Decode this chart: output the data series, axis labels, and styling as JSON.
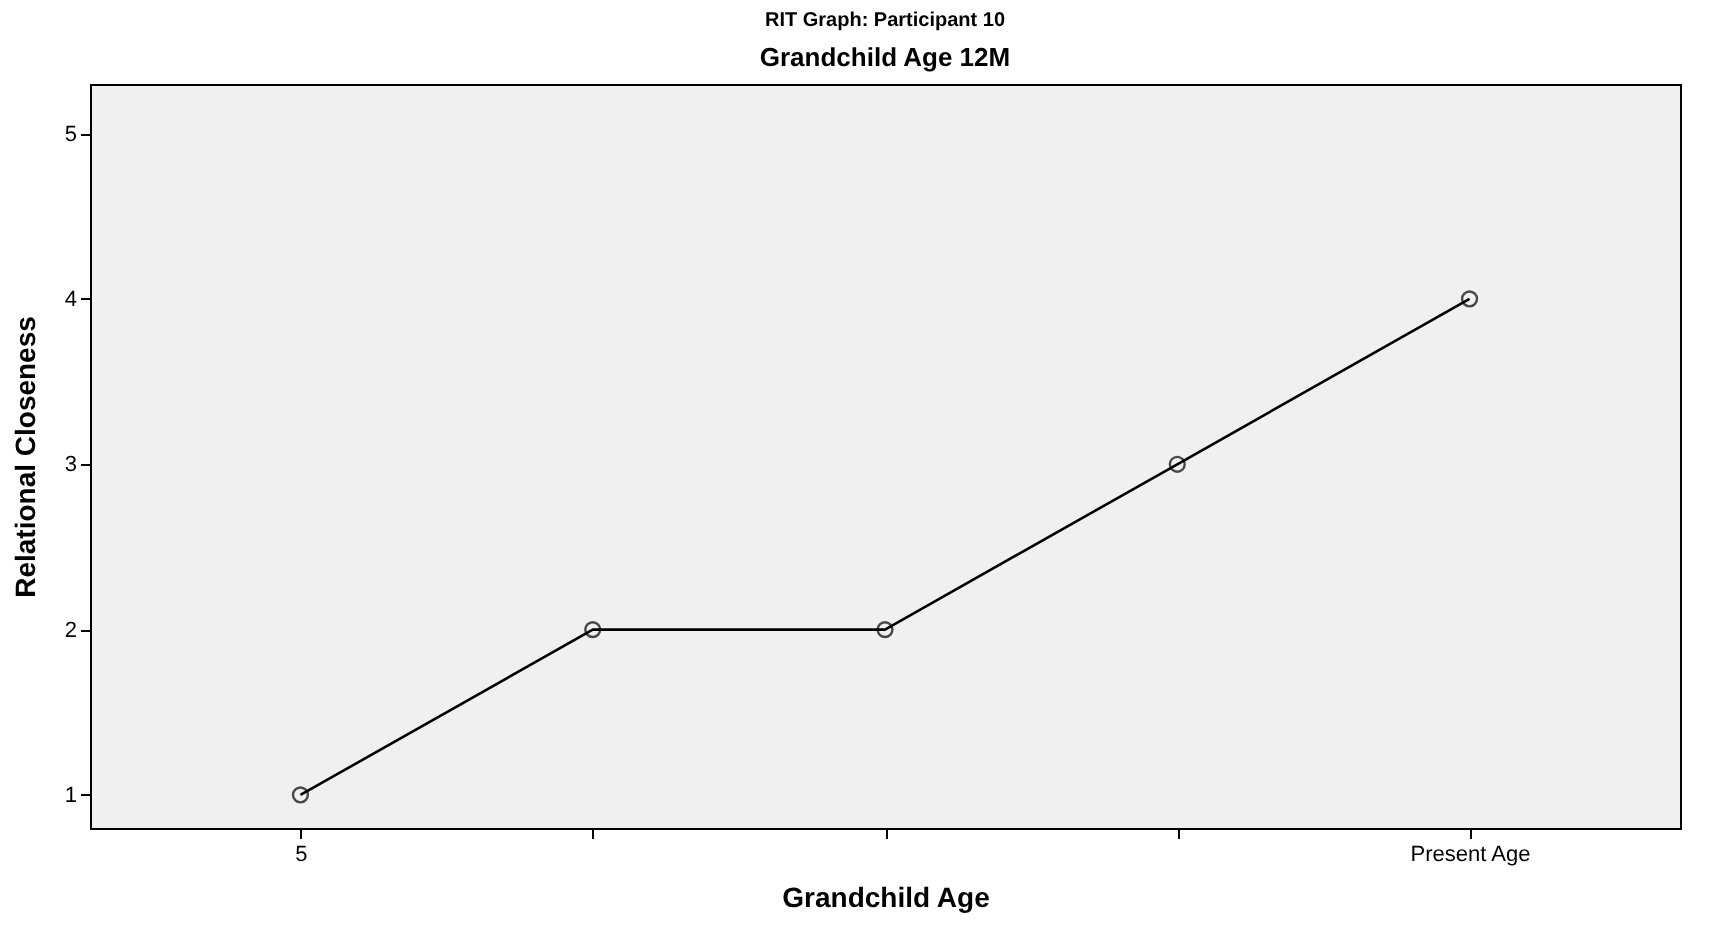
{
  "chart_data": {
    "type": "line",
    "title": "RIT Graph: Participant 10",
    "subtitle": "Grandchild Age 12M",
    "xlabel": "Grandchild Age",
    "ylabel": "Relational Closeness",
    "categories": [
      "5",
      null,
      null,
      null,
      "Present Age"
    ],
    "series": [
      {
        "color": "#000000",
        "values": [
          1,
          2,
          2,
          3,
          4
        ]
      }
    ],
    "ylim": [
      0.8,
      5.3
    ],
    "yticks": [
      1,
      2,
      3,
      4,
      5
    ],
    "grid": false,
    "legend": false,
    "marker": "circle",
    "line_style": "solid"
  }
}
